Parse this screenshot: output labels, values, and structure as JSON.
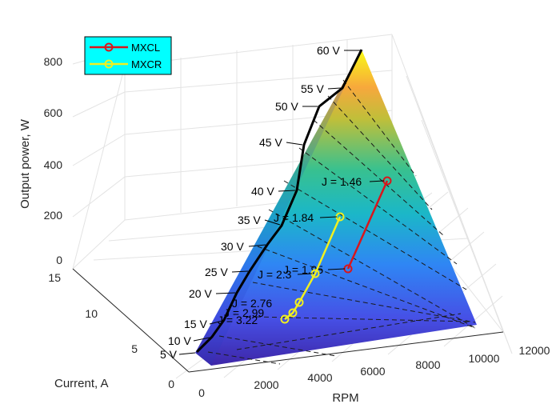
{
  "chart_data": {
    "type": "surface3d",
    "xlabel": "RPM",
    "ylabel": "Current, A",
    "zlabel": "Output power, W",
    "x_ticks": [
      0,
      2000,
      4000,
      6000,
      8000,
      10000,
      12000
    ],
    "y_ticks": [
      0,
      5,
      10,
      15
    ],
    "z_ticks": [
      0,
      200,
      400,
      600,
      800
    ],
    "xlim": [
      0,
      12000
    ],
    "ylim": [
      0,
      15
    ],
    "zlim": [
      0,
      800
    ],
    "grid": true,
    "colors": {
      "low": "#3e26a8",
      "mid": "#2db2a8",
      "high": "#f9fb15",
      "mxcl": "#d9161c",
      "mxcr": "#f0f020",
      "voltage_line": "#000000",
      "legend_bg": "#00ffff"
    },
    "voltage_envelope": [
      {
        "label": "5 V",
        "value": 5
      },
      {
        "label": "10 V",
        "value": 10
      },
      {
        "label": "15 V",
        "value": 15
      },
      {
        "label": "20 V",
        "value": 20
      },
      {
        "label": "25 V",
        "value": 25
      },
      {
        "label": "30 V",
        "value": 30
      },
      {
        "label": "35 V",
        "value": 35
      },
      {
        "label": "40 V",
        "value": 40
      },
      {
        "label": "45 V",
        "value": 45
      },
      {
        "label": "50 V",
        "value": 50
      },
      {
        "label": "55 V",
        "value": 55
      },
      {
        "label": "60 V",
        "value": 60
      }
    ],
    "series": [
      {
        "name": "MXCL",
        "color": "#d9161c",
        "points": [
          {
            "label": "J = 1.95"
          },
          {
            "label": "J = 1.46"
          }
        ]
      },
      {
        "name": "MXCR",
        "color": "#f0f020",
        "points": [
          {
            "label": "J = 3.22"
          },
          {
            "label": "J = 2.99"
          },
          {
            "label": "J = 2.76"
          },
          {
            "label": "J = 2.3"
          },
          {
            "label": "J = 1.84"
          }
        ]
      }
    ],
    "legend": {
      "placement": "top-left",
      "entries": [
        "MXCL",
        "MXCR"
      ]
    }
  }
}
